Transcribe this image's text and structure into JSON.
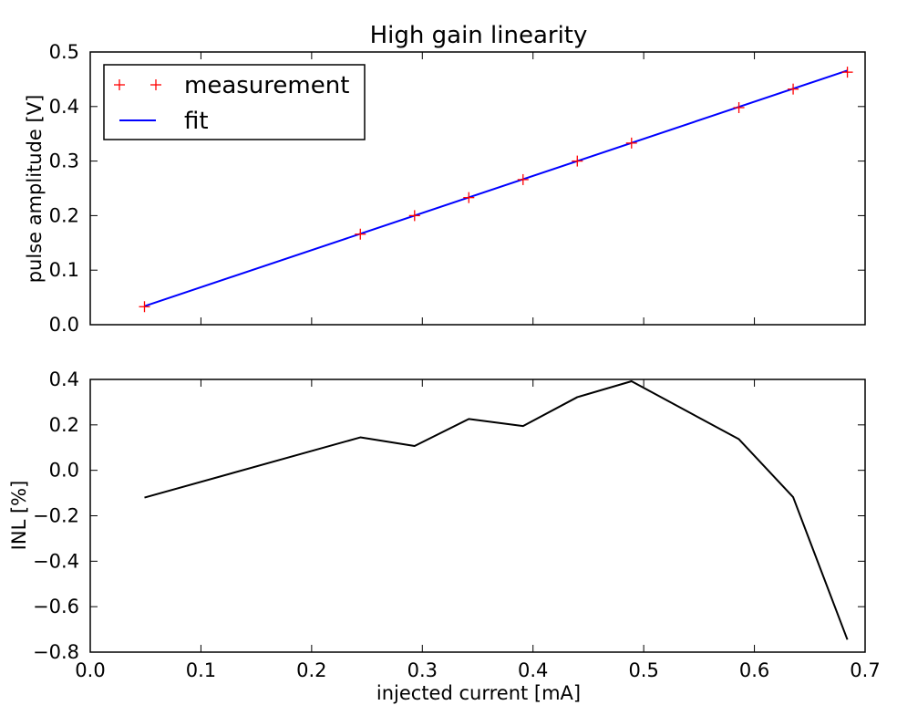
{
  "chart_data": [
    {
      "type": "line",
      "title": "High gain linearity",
      "xlabel": "",
      "ylabel": "pulse amplitude [V]",
      "xlim": [
        0.0,
        0.7
      ],
      "ylim": [
        0.0,
        0.5
      ],
      "xticks": [
        0.0,
        0.1,
        0.2,
        0.3,
        0.4,
        0.5,
        0.6,
        0.7
      ],
      "yticks": [
        0.0,
        0.1,
        0.2,
        0.3,
        0.4,
        0.5
      ],
      "ytick_labels": [
        "0.0",
        "0.1",
        "0.2",
        "0.3",
        "0.4",
        "0.5"
      ],
      "legend_position": "top-left",
      "grid": false,
      "series": [
        {
          "name": "measurement",
          "style": "markers",
          "marker": "+",
          "color": "#ff0000",
          "x": [
            0.049,
            0.244,
            0.293,
            0.342,
            0.391,
            0.44,
            0.489,
            0.586,
            0.635,
            0.684
          ],
          "y": [
            0.033,
            0.166,
            0.2,
            0.233,
            0.266,
            0.3,
            0.333,
            0.398,
            0.432,
            0.463
          ]
        },
        {
          "name": "fit",
          "style": "line",
          "color": "#0000ff",
          "x": [
            0.049,
            0.684
          ],
          "y": [
            0.034,
            0.466
          ]
        }
      ]
    },
    {
      "type": "line",
      "title": "",
      "xlabel": "injected current [mA]",
      "ylabel": "INL [%]",
      "xlim": [
        0.0,
        0.7
      ],
      "ylim": [
        -0.8,
        0.4
      ],
      "xticks": [
        0.0,
        0.1,
        0.2,
        0.3,
        0.4,
        0.5,
        0.6,
        0.7
      ],
      "xtick_labels": [
        "0.0",
        "0.1",
        "0.2",
        "0.3",
        "0.4",
        "0.5",
        "0.6",
        "0.7"
      ],
      "yticks": [
        -0.8,
        -0.6,
        -0.4,
        -0.2,
        0.0,
        0.2,
        0.4
      ],
      "ytick_labels": [
        "−0.8",
        "−0.6",
        "−0.4",
        "−0.2",
        "0.0",
        "0.2",
        "0.4"
      ],
      "grid": false,
      "series": [
        {
          "style": "line",
          "color": "#000000",
          "x": [
            0.049,
            0.244,
            0.293,
            0.342,
            0.391,
            0.44,
            0.489,
            0.586,
            0.635,
            0.684
          ],
          "y": [
            -0.12,
            0.145,
            0.107,
            0.226,
            0.195,
            0.322,
            0.392,
            0.137,
            -0.118,
            -0.745
          ]
        }
      ]
    }
  ]
}
